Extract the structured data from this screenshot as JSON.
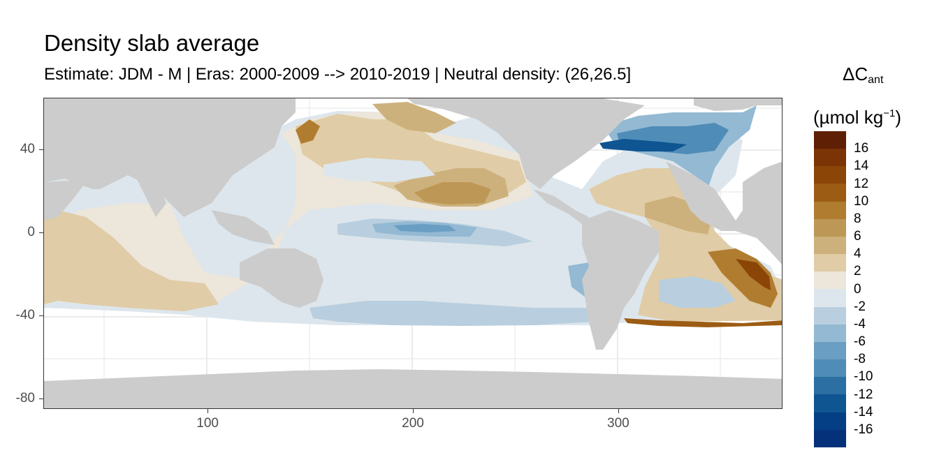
{
  "header": {
    "title": "Density slab average",
    "subtitle": "Estimate: JDM - M | Eras: 2000-2009 --> 2010-2019 | Neutral density: (26,26.5]"
  },
  "axes": {
    "x_ticks": [
      {
        "value": 100,
        "label": "100"
      },
      {
        "value": 200,
        "label": "200"
      },
      {
        "value": 300,
        "label": "300"
      }
    ],
    "y_ticks": [
      {
        "value": 40,
        "label": "40"
      },
      {
        "value": 0,
        "label": "0"
      },
      {
        "value": -40,
        "label": "-40"
      },
      {
        "value": -80,
        "label": "-80"
      }
    ],
    "xlim": [
      20,
      380
    ],
    "ylim": [
      -85,
      65
    ]
  },
  "legend": {
    "title_main": "ΔC",
    "title_sub": "ant",
    "unit_open": "(µmol kg",
    "unit_sup": "−1",
    "unit_close": ")",
    "labels": [
      "16",
      "14",
      "12",
      "10",
      "8",
      "6",
      "4",
      "2",
      "0",
      "-2",
      "-4",
      "-6",
      "-8",
      "-10",
      "-12",
      "-14",
      "-16"
    ],
    "colors": [
      "#5e1f05",
      "#7a3405",
      "#8a4507",
      "#9c5c13",
      "#b07d30",
      "#bd9755",
      "#cdb17c",
      "#e0cca6",
      "#ede6da",
      "#dde6ec",
      "#b9cfdf",
      "#93b9d3",
      "#6a9fc3",
      "#4f8cb7",
      "#2c6fa3",
      "#0e5592",
      "#043e85",
      "#05307a"
    ]
  },
  "map": {
    "land_color": "#cccccc",
    "nodata_color": "#ffffff",
    "grid_color": "#ebebeb"
  }
}
